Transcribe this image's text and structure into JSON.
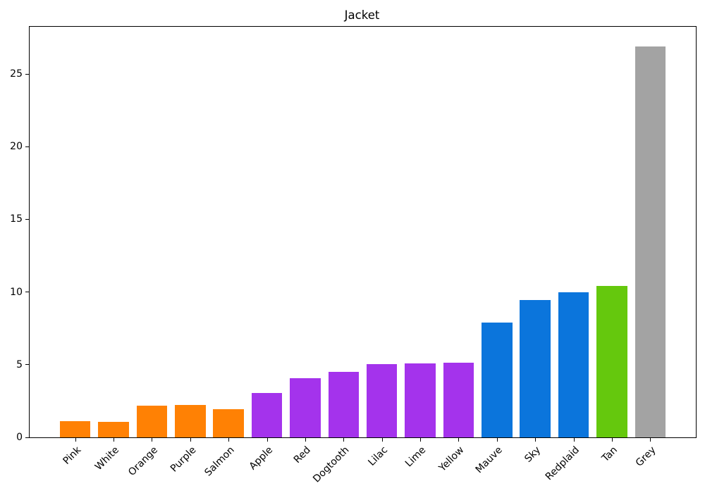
{
  "figure": {
    "background": "#ffffff"
  },
  "chart_data": {
    "type": "bar",
    "title": "Jacket",
    "xlabel": "",
    "ylabel": "",
    "categories": [
      "Pink",
      "White",
      "Orange",
      "Purple",
      "Salmon",
      "Apple",
      "Red",
      "Dogtooth",
      "Lilac",
      "Lime",
      "Yellow",
      "Mauve",
      "Sky",
      "Redplaid",
      "Tan",
      "Grey"
    ],
    "values": [
      1.1,
      1.05,
      2.2,
      2.25,
      1.95,
      3.05,
      4.05,
      4.5,
      5.05,
      5.1,
      5.15,
      7.9,
      9.45,
      10.0,
      10.4,
      26.9
    ],
    "bar_colors": [
      "#ff8104",
      "#ff8104",
      "#ff8104",
      "#ff8104",
      "#ff8104",
      "#a433ec",
      "#a433ec",
      "#a433ec",
      "#a433ec",
      "#a433ec",
      "#a433ec",
      "#0b75dc",
      "#0b75dc",
      "#0b75dc",
      "#65c80d",
      "#a3a3a3"
    ],
    "color_groups": [
      {
        "color": "#ff8104",
        "members": [
          "Pink",
          "White",
          "Orange",
          "Purple",
          "Salmon"
        ]
      },
      {
        "color": "#a433ec",
        "members": [
          "Apple",
          "Red",
          "Dogtooth",
          "Lilac",
          "Lime",
          "Yellow"
        ]
      },
      {
        "color": "#0b75dc",
        "members": [
          "Mauve",
          "Sky",
          "Redplaid"
        ]
      },
      {
        "color": "#65c80d",
        "members": [
          "Tan"
        ]
      },
      {
        "color": "#a3a3a3",
        "members": [
          "Grey"
        ]
      }
    ],
    "yticks": [
      0,
      5,
      10,
      15,
      20,
      25
    ],
    "ylim": [
      0,
      28.25
    ],
    "bar_width_fraction": 0.8,
    "x_tick_rotation_deg": 45,
    "grid": false,
    "legend": "none",
    "spine_color": "#000000"
  }
}
